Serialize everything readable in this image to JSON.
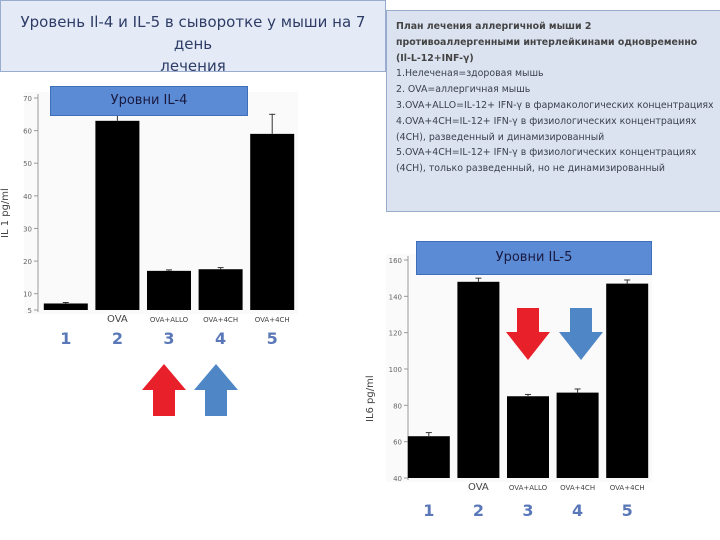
{
  "title": {
    "line1": "Уровень Il-4 и IL-5 в сыворотке у мыши на 7 день",
    "line2": "лечения"
  },
  "plan": {
    "heading": "План лечения аллергичной мыши 2 противоаллергенными интерлейкинами одновременно (Il-L-12+INF-γ)",
    "items": [
      "1.Нелеченая=здоровая мышь",
      "2. OVA=аллергичная мышь",
      "3.OVA+ALLO=IL-12+ IFN-γ в фармакологических концентрациях",
      "4.OVA+4CH=IL-12+ IFN-γ в физиологических концентрациях (4CH), разведенный и динамизированный",
      "5.OVA+4CH=IL-12+ IFN-γ в физиологических концентрациях (4CH), только разведенный, но не динамизированный"
    ]
  },
  "chart_data": [
    {
      "type": "bar",
      "title": "Уровни IL-4",
      "ylabel": "IL 1 pg/ml",
      "ylim": [
        5,
        70
      ],
      "yticks": [
        "5",
        "10",
        "20",
        "30",
        "40",
        "50",
        "60",
        "70"
      ],
      "categories": [
        "1",
        "2",
        "3",
        "4",
        "5"
      ],
      "category_labels": [
        "",
        "OVA",
        "OVA+ALLO",
        "OVA+4CH",
        "OVA+4CH"
      ],
      "values": [
        7,
        63,
        17,
        17.5,
        59
      ],
      "errors": [
        0.3,
        7,
        0.3,
        0.5,
        6
      ],
      "bar_color": "#000000",
      "grid": false
    },
    {
      "type": "bar",
      "title": "Уровни IL-5",
      "ylabel": "IL6 pg/ml",
      "ylim": [
        40,
        160
      ],
      "yticks": [
        "40",
        "60",
        "80",
        "100",
        "120",
        "140",
        "160"
      ],
      "categories": [
        "1",
        "2",
        "3",
        "4",
        "5"
      ],
      "category_labels": [
        "",
        "OVA",
        "OVA+ALLO",
        "OVA+4CH",
        "OVA+4CH"
      ],
      "values": [
        63,
        148,
        85,
        87,
        147
      ],
      "errors": [
        2,
        2,
        1,
        2,
        2
      ],
      "bar_color": "#000000",
      "grid": false
    }
  ],
  "arrows": {
    "red": "#e8202a",
    "blue": "#4f86c6"
  }
}
